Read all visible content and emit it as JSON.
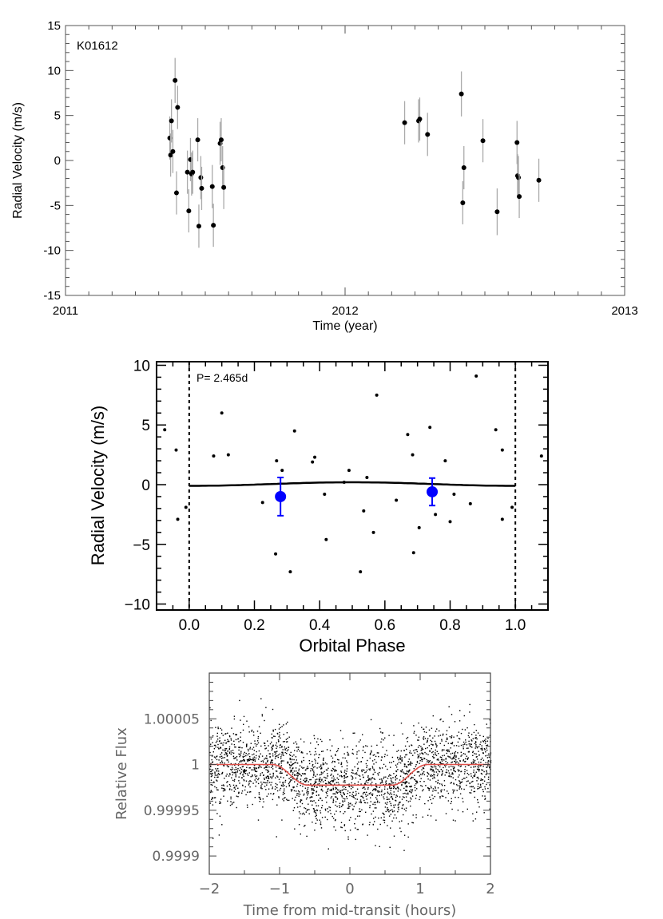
{
  "chart_data": [
    {
      "type": "scatter",
      "panel": "rv-time",
      "annotation": "K01612",
      "xlabel": "Time (year)",
      "ylabel": "Radial Velocity (m/s)",
      "xlim": [
        2011,
        2013
      ],
      "ylim": [
        -15,
        15
      ],
      "x_ticks": [
        {
          "v": 2011,
          "label": "2011"
        },
        {
          "v": 2012,
          "label": "2012"
        },
        {
          "v": 2013,
          "label": "2013"
        }
      ],
      "y_ticks": [
        {
          "v": -15,
          "label": "-15"
        },
        {
          "v": -10,
          "label": "-10"
        },
        {
          "v": -5,
          "label": "-5"
        },
        {
          "v": 0,
          "label": "0"
        },
        {
          "v": 5,
          "label": "5"
        },
        {
          "v": 10,
          "label": "10"
        },
        {
          "v": 15,
          "label": "15"
        }
      ],
      "points": [
        {
          "x": 2011.373,
          "y": 2.5,
          "err": 2.4
        },
        {
          "x": 2011.376,
          "y": 0.6,
          "err": 2.4
        },
        {
          "x": 2011.379,
          "y": 4.4,
          "err": 2.4
        },
        {
          "x": 2011.384,
          "y": 1.0,
          "err": 2.4
        },
        {
          "x": 2011.392,
          "y": 8.9,
          "err": 2.5
        },
        {
          "x": 2011.397,
          "y": -3.6,
          "err": 2.4
        },
        {
          "x": 2011.401,
          "y": 5.9,
          "err": 2.4
        },
        {
          "x": 2011.436,
          "y": -1.3,
          "err": 2.4
        },
        {
          "x": 2011.441,
          "y": -5.6,
          "err": 2.4
        },
        {
          "x": 2011.447,
          "y": 0.1,
          "err": 2.4
        },
        {
          "x": 2011.451,
          "y": -1.5,
          "err": 2.4
        },
        {
          "x": 2011.455,
          "y": -1.3,
          "err": 2.4
        },
        {
          "x": 2011.473,
          "y": 2.3,
          "err": 2.4
        },
        {
          "x": 2011.477,
          "y": -7.3,
          "err": 2.4
        },
        {
          "x": 2011.484,
          "y": -1.9,
          "err": 2.4
        },
        {
          "x": 2011.487,
          "y": -3.1,
          "err": 2.4
        },
        {
          "x": 2011.525,
          "y": -2.9,
          "err": 2.4
        },
        {
          "x": 2011.529,
          "y": -7.2,
          "err": 2.4
        },
        {
          "x": 2011.553,
          "y": 1.9,
          "err": 2.4
        },
        {
          "x": 2011.557,
          "y": 2.3,
          "err": 2.4
        },
        {
          "x": 2011.562,
          "y": -0.8,
          "err": 2.4
        },
        {
          "x": 2011.566,
          "y": -3.0,
          "err": 2.4
        },
        {
          "x": 2012.213,
          "y": 4.2,
          "err": 2.4
        },
        {
          "x": 2012.263,
          "y": 4.4,
          "err": 2.4
        },
        {
          "x": 2012.267,
          "y": 4.6,
          "err": 2.4
        },
        {
          "x": 2012.295,
          "y": 2.9,
          "err": 2.4
        },
        {
          "x": 2012.416,
          "y": 7.4,
          "err": 2.5
        },
        {
          "x": 2012.421,
          "y": -4.7,
          "err": 2.4
        },
        {
          "x": 2012.425,
          "y": -0.8,
          "err": 2.4
        },
        {
          "x": 2012.493,
          "y": 2.2,
          "err": 2.4
        },
        {
          "x": 2012.544,
          "y": -5.7,
          "err": 2.6
        },
        {
          "x": 2012.615,
          "y": 2.0,
          "err": 2.4
        },
        {
          "x": 2012.617,
          "y": -1.7,
          "err": 2.4
        },
        {
          "x": 2012.62,
          "y": -1.9,
          "err": 2.4
        },
        {
          "x": 2012.623,
          "y": -4.0,
          "err": 2.4
        },
        {
          "x": 2012.693,
          "y": -2.2,
          "err": 2.4
        }
      ]
    },
    {
      "type": "scatter",
      "panel": "rv-phase",
      "annotation": "P= 2.465d",
      "xlabel": "Orbital Phase",
      "ylabel": "Radial Velocity (m/s)",
      "xlim": [
        -0.1,
        1.1
      ],
      "ylim": [
        -10.5,
        10.3
      ],
      "x_ticks": [
        {
          "v": 0.0,
          "label": "0.0"
        },
        {
          "v": 0.2,
          "label": "0.2"
        },
        {
          "v": 0.4,
          "label": "0.4"
        },
        {
          "v": 0.6,
          "label": "0.6"
        },
        {
          "v": 0.8,
          "label": "0.8"
        },
        {
          "v": 1.0,
          "label": "1.0"
        }
      ],
      "y_ticks": [
        {
          "v": -10,
          "label": "−10"
        },
        {
          "v": -5,
          "label": "−5"
        },
        {
          "v": 0,
          "label": "0"
        },
        {
          "v": 5,
          "label": "5"
        },
        {
          "v": 10,
          "label": "10"
        }
      ],
      "phase_markers": [
        0.0,
        1.0
      ],
      "model_amplitude": 0.15,
      "points": [
        {
          "x": -0.075,
          "y": 4.6
        },
        {
          "x": -0.04,
          "y": 2.9
        },
        {
          "x": -0.035,
          "y": -2.9
        },
        {
          "x": -0.01,
          "y": -1.9
        },
        {
          "x": 0.075,
          "y": 2.4
        },
        {
          "x": 0.1,
          "y": 6.0
        },
        {
          "x": 0.12,
          "y": 2.5
        },
        {
          "x": 0.225,
          "y": -1.5
        },
        {
          "x": 0.265,
          "y": -5.8
        },
        {
          "x": 0.268,
          "y": 2.0
        },
        {
          "x": 0.285,
          "y": 1.2
        },
        {
          "x": 0.31,
          "y": -7.3
        },
        {
          "x": 0.323,
          "y": 4.5
        },
        {
          "x": 0.378,
          "y": 1.9
        },
        {
          "x": 0.385,
          "y": 2.3
        },
        {
          "x": 0.415,
          "y": -0.8
        },
        {
          "x": 0.42,
          "y": -4.6
        },
        {
          "x": 0.475,
          "y": 0.2
        },
        {
          "x": 0.49,
          "y": 1.2
        },
        {
          "x": 0.525,
          "y": -7.3
        },
        {
          "x": 0.535,
          "y": -2.2
        },
        {
          "x": 0.545,
          "y": 0.6
        },
        {
          "x": 0.565,
          "y": -4.0
        },
        {
          "x": 0.575,
          "y": 7.5
        },
        {
          "x": 0.635,
          "y": -1.3
        },
        {
          "x": 0.67,
          "y": 4.2
        },
        {
          "x": 0.685,
          "y": 2.5
        },
        {
          "x": 0.688,
          "y": -5.7
        },
        {
          "x": 0.705,
          "y": -3.6
        },
        {
          "x": 0.738,
          "y": 4.8
        },
        {
          "x": 0.755,
          "y": -2.5
        },
        {
          "x": 0.785,
          "y": 2.0
        },
        {
          "x": 0.8,
          "y": -3.1
        },
        {
          "x": 0.812,
          "y": -0.8
        },
        {
          "x": 0.862,
          "y": -1.6
        },
        {
          "x": 0.88,
          "y": 9.1
        },
        {
          "x": 0.94,
          "y": 4.6
        },
        {
          "x": 0.96,
          "y": 2.9
        },
        {
          "x": 0.96,
          "y": -2.9
        },
        {
          "x": 0.99,
          "y": -1.9
        },
        {
          "x": 1.08,
          "y": 2.4
        }
      ],
      "binned_points": [
        {
          "x": 0.28,
          "y": -1.0,
          "err": 1.6
        },
        {
          "x": 0.745,
          "y": -0.6,
          "err": 1.15
        }
      ],
      "colors": {
        "binned": "#0000ff",
        "model": "#000000"
      }
    },
    {
      "type": "scatter",
      "panel": "transit",
      "xlabel": "Time from mid-transit (hours)",
      "ylabel": "Relative Flux",
      "xlim": [
        -2,
        2
      ],
      "ylim": [
        0.99988,
        1.0001
      ],
      "x_ticks": [
        {
          "v": -2,
          "label": "−2"
        },
        {
          "v": -1,
          "label": "−1"
        },
        {
          "v": 0,
          "label": "0"
        },
        {
          "v": 1,
          "label": "1"
        },
        {
          "v": 2,
          "label": "2"
        }
      ],
      "y_ticks": [
        {
          "v": 1.00005,
          "label": "1.00005"
        },
        {
          "v": 1.0,
          "label": "1"
        },
        {
          "v": 0.99995,
          "label": "0.99995"
        },
        {
          "v": 0.9999,
          "label": "0.9999"
        }
      ],
      "model": {
        "depth": 2.25e-05,
        "half_duration": 0.85,
        "ingress": 0.5
      },
      "noise_sigma": 2.3e-05,
      "colors": {
        "model": "#e0504a",
        "points": "#000000"
      }
    }
  ]
}
